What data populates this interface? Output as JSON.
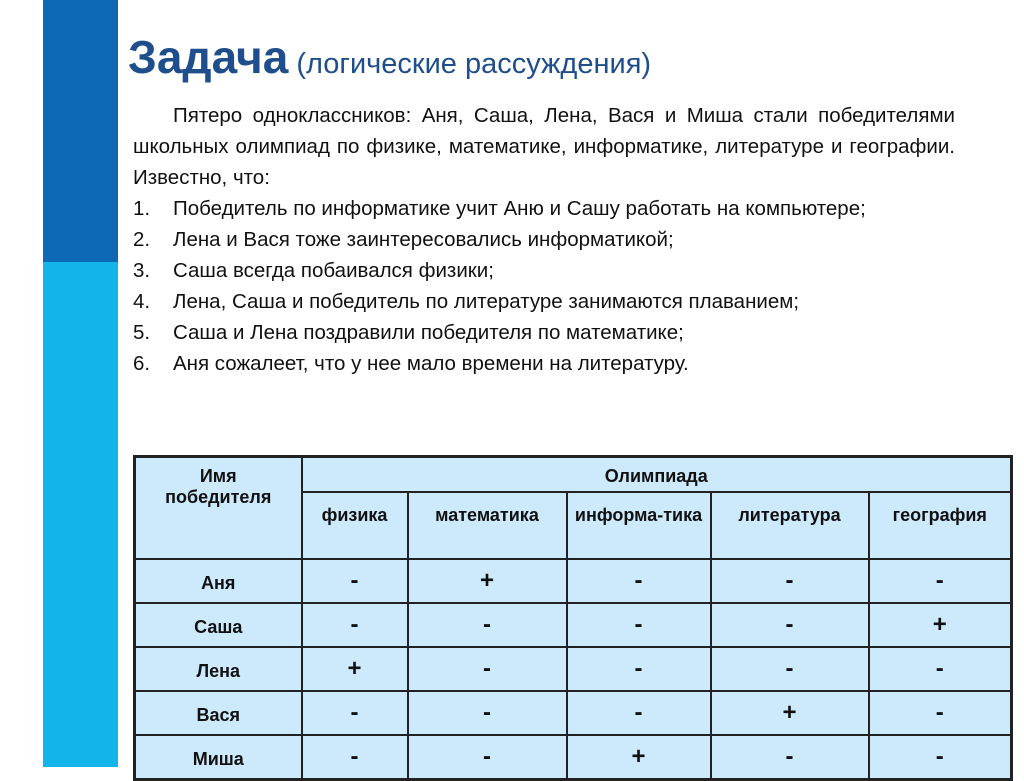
{
  "title": {
    "main": "Задача",
    "sub": "(логические рассуждения)"
  },
  "intro": "Пятеро одноклассников: Аня, Саша, Лена, Вася и Миша стали победителями школьных олимпиад по физике, математике, информатике, литературе и географии. Известно, что:",
  "facts": [
    {
      "n": "1.",
      "t": "Победитель по информатике учит Аню и Сашу работать на компьютере;"
    },
    {
      "n": "2.",
      "t": "Лена и Вася тоже заинтересовались информатикой;"
    },
    {
      "n": "3.",
      "t": "Саша всегда побаивался физики;"
    },
    {
      "n": "4.",
      "t": "Лена, Саша и победитель по литературе занимаются плаванием;"
    },
    {
      "n": "5.",
      "t": "Саша и Лена поздравили победителя по математике;"
    },
    {
      "n": "6.",
      "t": "Аня сожалеет, что у нее мало времени на литературу."
    }
  ],
  "table": {
    "name_header": "Имя победителя",
    "group_header": "Олимпиада",
    "columns": [
      "физика",
      "математика",
      "информа-тика",
      "литература",
      "география"
    ],
    "rows": [
      {
        "name": "Аня",
        "cells": [
          "-",
          "+",
          "-",
          "-",
          "-"
        ]
      },
      {
        "name": "Саша",
        "cells": [
          "-",
          "-",
          "-",
          "-",
          "+"
        ]
      },
      {
        "name": "Лена",
        "cells": [
          "+",
          "-",
          "-",
          "-",
          "-"
        ]
      },
      {
        "name": "Вася",
        "cells": [
          "-",
          "-",
          "-",
          "+",
          "-"
        ]
      },
      {
        "name": "Миша",
        "cells": [
          "-",
          "-",
          "+",
          "-",
          "-"
        ]
      }
    ]
  }
}
